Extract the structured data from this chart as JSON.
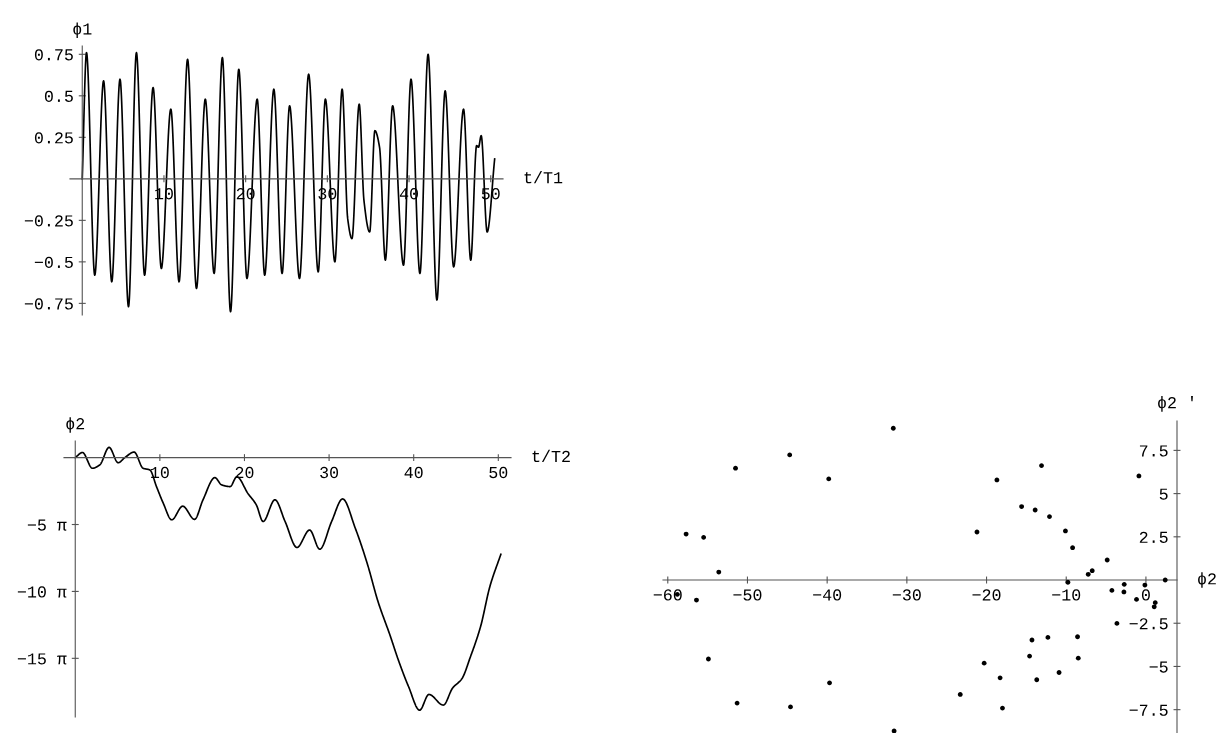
{
  "chart_data": [
    {
      "type": "line",
      "xlabel": "t/T1",
      "ylabel": "ϕ1",
      "color": "#000000",
      "grid": false,
      "x": [
        0,
        0.52,
        1.53,
        2.61,
        3.61,
        4.62,
        5.66,
        6.63,
        7.63,
        8.67,
        9.68,
        10.84,
        11.85,
        12.89,
        13.98,
        15.06,
        16.14,
        17.15,
        18.15,
        19.16,
        20.16,
        21.41,
        22.33,
        23.45,
        24.46,
        25.38,
        26.59,
        27.71,
        28.88,
        29.76,
        30.92,
        31.81,
        32.49,
        33.01,
        33.9,
        34.48,
        35.18,
        35.82,
        36.39,
        37.1,
        37.99,
        39.32,
        40.24,
        41.33,
        42.33,
        43.41,
        44.42,
        45.46,
        46.67,
        47.55,
        48.27,
        48.5,
        48.83,
        49.56,
        50.48
      ],
      "values": [
        0,
        0.76,
        -0.58,
        0.59,
        -0.62,
        0.6,
        -0.77,
        0.76,
        -0.58,
        0.55,
        -0.54,
        0.42,
        -0.62,
        0.72,
        -0.66,
        0.48,
        -0.57,
        0.73,
        -0.8,
        0.66,
        -0.6,
        0.48,
        -0.58,
        0.54,
        -0.57,
        0.44,
        -0.6,
        0.63,
        -0.56,
        0.48,
        -0.5,
        0.54,
        -0.24,
        -0.36,
        0.45,
        -0.13,
        -0.32,
        0.29,
        0.19,
        -0.49,
        0.44,
        -0.52,
        0.6,
        -0.57,
        0.75,
        -0.73,
        0.53,
        -0.53,
        0.42,
        -0.49,
        0.2,
        0.19,
        0.26,
        -0.32,
        0.12
      ],
      "xlim": [
        -1.5,
        51.5
      ],
      "ylim": [
        -0.82,
        0.8
      ],
      "xticks": [
        10,
        20,
        30,
        40,
        50
      ],
      "yticks": [
        {
          "value": -0.75,
          "label": "−0.75"
        },
        {
          "value": -0.5,
          "label": "−0.5"
        },
        {
          "value": -0.25,
          "label": "−0.25"
        },
        0.25,
        0.5,
        0.75
      ]
    },
    {
      "type": "line",
      "xlabel": "t/T2",
      "ylabel": "ϕ2",
      "color": "#000000",
      "grid": false,
      "x": [
        0,
        0.85,
        2.03,
        2.9,
        4.0,
        5.07,
        5.86,
        6.96,
        8.02,
        8.82,
        9.6,
        10.4,
        11.4,
        12.7,
        14.1,
        15.1,
        16.5,
        17.3,
        18.3,
        19.1,
        20.4,
        21.4,
        22.2,
        23.6,
        24.8,
        26.2,
        27.7,
        28.9,
        30.3,
        31.6,
        33.1,
        34.5,
        35.8,
        37.2,
        38.2,
        39.4,
        40.7,
        41.8,
        43.5,
        44.6,
        45.7,
        46.7,
        47.9,
        49.0,
        50.3
      ],
      "values": [
        0,
        1.2,
        -2.5,
        -1.7,
        2.4,
        -1.2,
        0,
        1.3,
        -2.5,
        -2.9,
        -6.8,
        -10.7,
        -14.6,
        -11.4,
        -14.5,
        -9.9,
        -4.7,
        -6.4,
        -6.8,
        -4.5,
        -8.4,
        -11.1,
        -15.0,
        -9.9,
        -15.0,
        -21.1,
        -17.0,
        -21.5,
        -15.0,
        -9.7,
        -16.6,
        -24.8,
        -33.9,
        -41.7,
        -47.6,
        -53.8,
        -59.3,
        -55.6,
        -58.1,
        -54.1,
        -51.9,
        -46.8,
        -39.7,
        -30.3,
        -22.7
      ],
      "xlim": [
        -1.33,
        51.5
      ],
      "ylim": [
        -60.9,
        3.9
      ],
      "xticks": [
        10,
        20,
        30,
        40,
        50
      ],
      "yticks": [
        {
          "value": -15.708,
          "label": "−5 π"
        },
        {
          "value": -31.416,
          "label": "−10 π"
        },
        {
          "value": -47.124,
          "label": "−15 π"
        }
      ]
    },
    {
      "type": "scatter",
      "xlabel": "ϕ2",
      "ylabel": "ϕ2 '",
      "color": "#000000",
      "grid": false,
      "marker": "circle",
      "x": [
        -31.7,
        -44.7,
        -51.5,
        -39.8,
        -57.7,
        -55.5,
        -53.6,
        -58.8,
        -56.4,
        -54.9,
        -39.7,
        -51.3,
        -44.6,
        -31.6,
        -13.1,
        -18.7,
        -0.88,
        -15.6,
        -13.9,
        -12.1,
        -21.2,
        -10.1,
        -9.2,
        -4.86,
        -6.74,
        -7.24,
        2.42,
        -9.79,
        -2.72,
        -0.13,
        -4.27,
        -2.76,
        -1.18,
        1.17,
        1.04,
        -3.64,
        -14.3,
        -12.3,
        -8.58,
        -14.6,
        -8.49,
        -20.3,
        -10.9,
        -18.3,
        -13.7,
        -23.3,
        -18.0
      ],
      "values": [
        8.78,
        7.24,
        6.47,
        5.85,
        2.66,
        2.47,
        0.46,
        -0.83,
        -1.16,
        -4.57,
        -5.95,
        -7.12,
        -7.34,
        -8.73,
        6.62,
        5.79,
        6.02,
        4.25,
        4.05,
        3.67,
        2.78,
        2.84,
        1.87,
        1.16,
        0.54,
        0.33,
        0,
        -0.13,
        -0.25,
        -0.29,
        -0.6,
        -0.69,
        -1.12,
        -1.31,
        -1.55,
        -2.51,
        -3.47,
        -3.32,
        -3.28,
        -4.4,
        -4.52,
        -4.81,
        -5.35,
        -5.66,
        -5.77,
        -6.62,
        -7.41
      ],
      "xlim": [
        -60.6,
        3.9
      ],
      "ylim": [
        -8.85,
        9.2
      ],
      "xticks": [
        {
          "value": -60,
          "label": "−60"
        },
        {
          "value": -50,
          "label": "−50"
        },
        {
          "value": -40,
          "label": "−40"
        },
        {
          "value": -30,
          "label": "−30"
        },
        {
          "value": -20,
          "label": "−20"
        },
        {
          "value": -10,
          "label": "−10"
        },
        0
      ],
      "yticks": [
        {
          "value": -7.5,
          "label": "−7.5"
        },
        {
          "value": -5,
          "label": "−5"
        },
        {
          "value": -2.5,
          "label": "−2.5"
        },
        2.5,
        5,
        7.5
      ]
    }
  ]
}
